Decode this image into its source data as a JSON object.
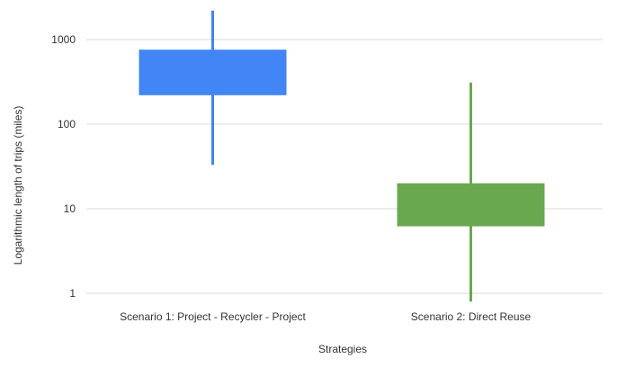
{
  "chart_data": {
    "type": "candlestick",
    "scale": "log",
    "title": "",
    "xlabel": "Strategies",
    "ylabel": "Logarithmic length of trips (miles)",
    "ylim": [
      0.85,
      2500
    ],
    "yticks": [
      1,
      10,
      100,
      1000
    ],
    "ytick_labels": [
      "1",
      "10",
      "100",
      "1000"
    ],
    "grid": true,
    "categories": [
      "Scenario 1: Project - Recycler - Project",
      "Scenario 2: Direct Reuse"
    ],
    "series": [
      {
        "category": "Scenario 1: Project - Recycler - Project",
        "low": 33,
        "box_low": 220,
        "box_high": 760,
        "high": 2200,
        "color": "#4285f4"
      },
      {
        "category": "Scenario 2: Direct Reuse",
        "low": 0.8,
        "box_low": 6.2,
        "box_high": 20,
        "high": 310,
        "color": "#6aa84f"
      }
    ]
  }
}
